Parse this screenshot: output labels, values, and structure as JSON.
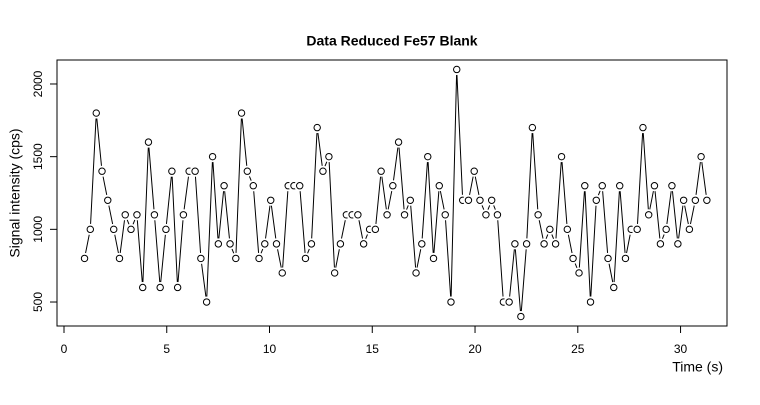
{
  "chart_data": {
    "type": "line",
    "title": "Data Reduced Fe57 Blank",
    "xlabel": "Time (s)",
    "ylabel": "Signal intensity (cps)",
    "x": [
      1.0,
      1.28,
      1.57,
      1.85,
      2.13,
      2.42,
      2.7,
      2.98,
      3.26,
      3.55,
      3.83,
      4.11,
      4.4,
      4.68,
      4.96,
      5.25,
      5.53,
      5.81,
      6.09,
      6.38,
      6.66,
      6.94,
      7.23,
      7.51,
      7.79,
      8.08,
      8.36,
      8.64,
      8.92,
      9.21,
      9.49,
      9.77,
      10.06,
      10.34,
      10.62,
      10.91,
      11.19,
      11.47,
      11.75,
      12.04,
      12.32,
      12.6,
      12.89,
      13.17,
      13.45,
      13.74,
      14.02,
      14.3,
      14.58,
      14.87,
      15.15,
      15.43,
      15.72,
      16.0,
      16.28,
      16.57,
      16.85,
      17.13,
      17.41,
      17.7,
      17.98,
      18.26,
      18.55,
      18.83,
      19.11,
      19.4,
      19.68,
      19.96,
      20.24,
      20.53,
      20.81,
      21.09,
      21.38,
      21.66,
      21.94,
      22.23,
      22.51,
      22.79,
      23.07,
      23.36,
      23.64,
      23.92,
      24.21,
      24.49,
      24.77,
      25.06,
      25.34,
      25.62,
      25.9,
      26.19,
      26.47,
      26.75,
      27.04,
      27.32,
      27.6,
      27.89,
      28.17,
      28.45,
      28.73,
      29.02,
      29.3,
      29.58,
      29.87,
      30.15,
      30.43,
      30.72,
      31.0,
      31.28
    ],
    "series": [
      {
        "color": "#000000",
        "values": [
          800,
          1000,
          1800,
          1400,
          1200,
          1000,
          800,
          1100,
          1000,
          1100,
          600,
          1600,
          1100,
          600,
          1000,
          1400,
          600,
          1100,
          1400,
          1400,
          800,
          500,
          1500,
          900,
          1300,
          900,
          800,
          1800,
          1400,
          1300,
          800,
          900,
          1200,
          900,
          700,
          1300,
          1300,
          1300,
          800,
          900,
          1700,
          1400,
          1500,
          700,
          900,
          1100,
          1100,
          1100,
          900,
          1000,
          1000,
          1400,
          1100,
          1300,
          1600,
          1100,
          1200,
          700,
          900,
          1500,
          800,
          1300,
          1100,
          500,
          2100,
          1200,
          1200,
          1400,
          1200,
          1100,
          1200,
          1100,
          500,
          500,
          900,
          400,
          900,
          1700,
          1100,
          900,
          1000,
          900,
          1500,
          1000,
          800,
          700,
          1300,
          500,
          1200,
          1300,
          800,
          600,
          1300,
          800,
          1000,
          1000,
          1700,
          1100,
          1300,
          900,
          1000,
          1300,
          900,
          1200,
          1000,
          1200,
          1500,
          1200
        ]
      }
    ],
    "xlim": [
      -0.34,
      32.26
    ],
    "ylim": [
      335,
      2165
    ],
    "xticks": [
      0,
      5,
      10,
      15,
      20,
      25,
      30
    ],
    "yticks": [
      500,
      1000,
      1500,
      2000
    ],
    "markers": true
  }
}
